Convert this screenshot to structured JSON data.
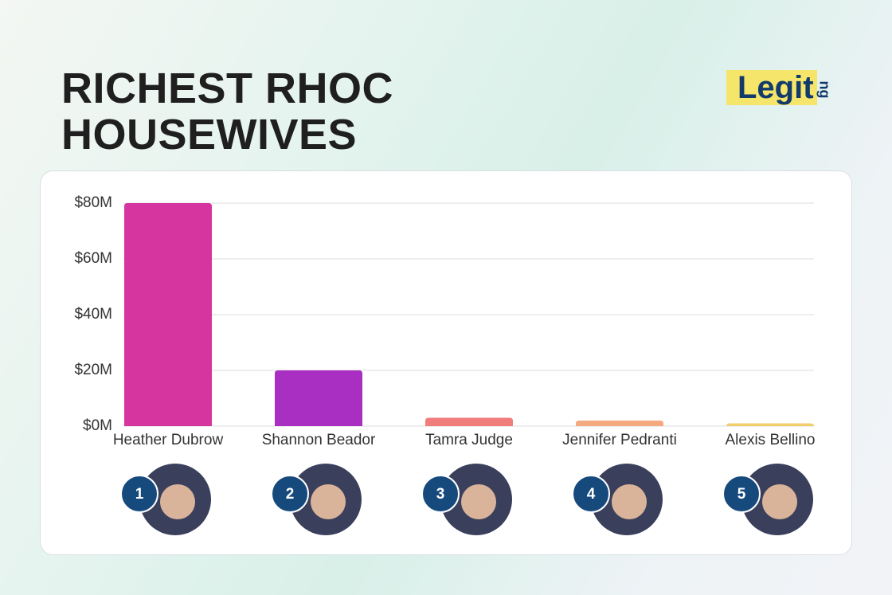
{
  "logo": {
    "text": "Legit",
    "suffix": "ng"
  },
  "chart_data": {
    "type": "bar",
    "title": "RICHEST RHOC HOUSEWIVES",
    "categories": [
      "Heather Dubrow",
      "Shannon Beador",
      "Tamra Judge",
      "Jennifer Pedranti",
      "Alexis Bellino"
    ],
    "values": [
      80,
      20,
      3,
      2,
      1
    ],
    "colors": [
      "#d6359f",
      "#a92fc2",
      "#f07c7c",
      "#f5a97f",
      "#f2cd6e"
    ],
    "ranks": [
      "1",
      "2",
      "3",
      "4",
      "5"
    ],
    "ylim": [
      0,
      80
    ],
    "yticks": [
      {
        "value": 0,
        "label": "$0M"
      },
      {
        "value": 20,
        "label": "$20M"
      },
      {
        "value": 40,
        "label": "$40M"
      },
      {
        "value": 60,
        "label": "$60M"
      },
      {
        "value": 80,
        "label": "$80M"
      }
    ],
    "grid": true
  }
}
